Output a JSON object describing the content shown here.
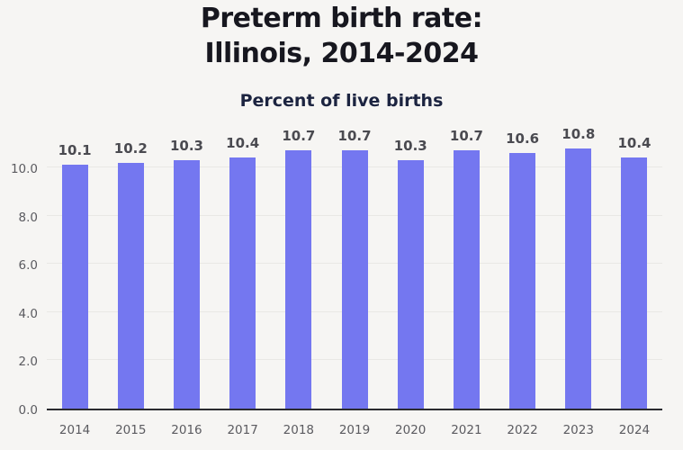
{
  "header": {
    "title_line1": "Preterm birth rate:",
    "title_line2": "Illinois, 2014-2024",
    "subtitle": "Percent of live births"
  },
  "chart_data": {
    "type": "bar",
    "title": "Preterm birth rate: Illinois, 2014-2024",
    "subtitle": "Percent of live births",
    "categories": [
      "2014",
      "2015",
      "2016",
      "2017",
      "2018",
      "2019",
      "2020",
      "2021",
      "2022",
      "2023",
      "2024"
    ],
    "values": [
      10.1,
      10.2,
      10.3,
      10.4,
      10.7,
      10.7,
      10.3,
      10.7,
      10.6,
      10.8,
      10.4
    ],
    "data_labels": [
      "10.1",
      "10.2",
      "10.3",
      "10.4",
      "10.7",
      "10.7",
      "10.3",
      "10.7",
      "10.6",
      "10.8",
      "10.4"
    ],
    "xlabel": "",
    "ylabel": "Percent of live births",
    "ylim": [
      0,
      11.4
    ],
    "yticks": [
      0,
      2,
      4,
      6,
      8,
      10
    ],
    "ytick_labels": [
      "0.0",
      "2.0",
      "4.0",
      "6.0",
      "8.0",
      "10.0"
    ],
    "grid": true,
    "legend": false
  },
  "colors": {
    "background": "#f6f5f3",
    "bar": "#7477f0",
    "gridline": "#e9e8e5",
    "baseline": "#2b2b30",
    "axis_label": "#5b5b60",
    "data_label": "#4a4a50",
    "title": "#17171f",
    "subtitle": "#1c2440"
  }
}
